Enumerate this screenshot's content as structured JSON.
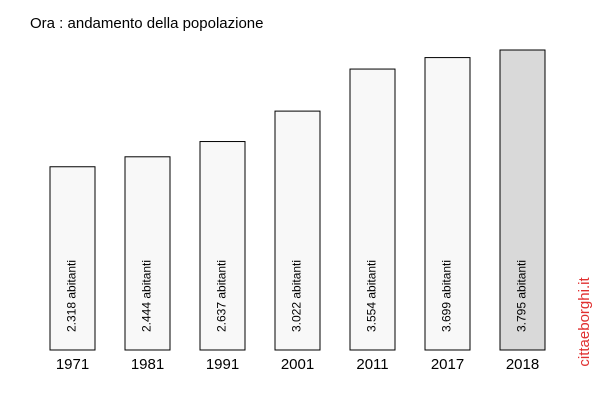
{
  "chart_data": {
    "type": "bar",
    "title": "Ora : andamento della popolazione",
    "categories": [
      "1971",
      "1981",
      "1991",
      "2001",
      "2011",
      "2017",
      "2018"
    ],
    "values": [
      2318,
      2444,
      2637,
      3022,
      3554,
      3699,
      3795
    ],
    "value_labels": [
      "2.318 abitanti",
      "2.444 abitanti",
      "2.637 abitanti",
      "3.022 abitanti",
      "3.554 abitanti",
      "3.699 abitanti",
      "3.795 abitanti"
    ],
    "colors": [
      "#f8f8f8",
      "#f8f8f8",
      "#f8f8f8",
      "#f8f8f8",
      "#f8f8f8",
      "#f8f8f8",
      "#d9d9d9"
    ],
    "watermark": "cittaeborghi.it",
    "watermark_color": "#e03030"
  }
}
